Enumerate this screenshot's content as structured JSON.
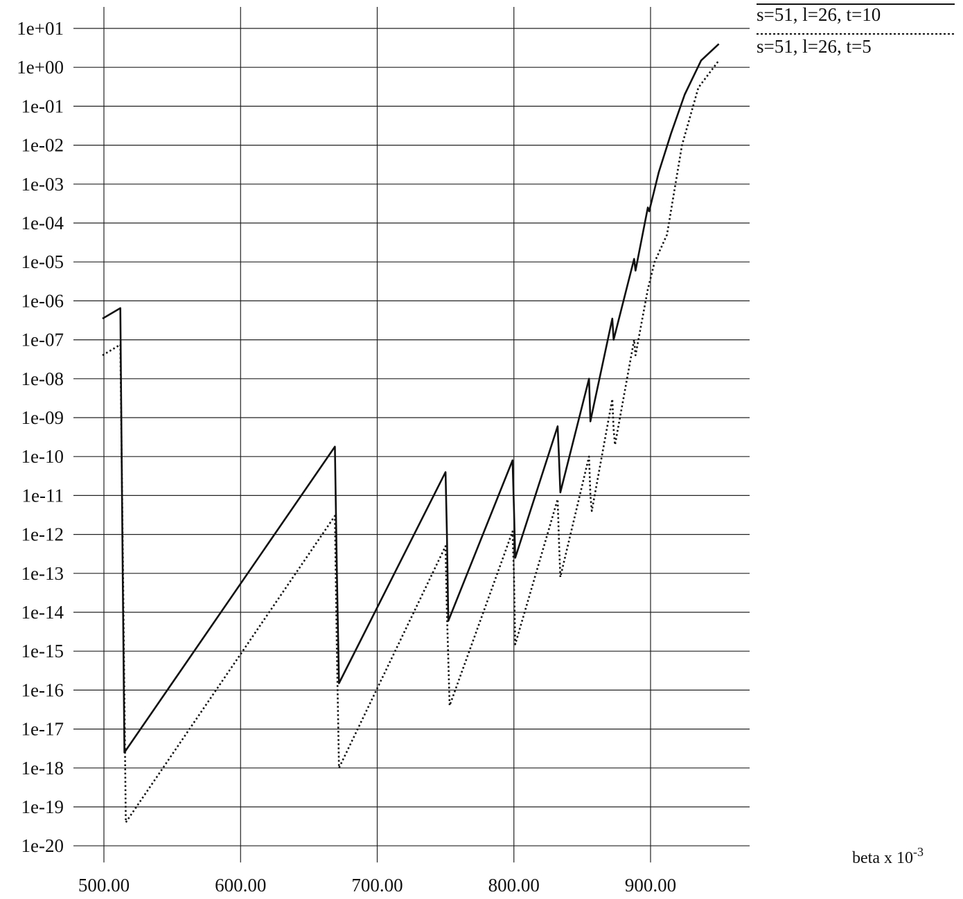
{
  "chart_data": {
    "type": "line",
    "title": "",
    "xlabel": "beta x 10",
    "xlabel_exponent": "-3",
    "ylabel": "",
    "y_scale": "log",
    "xlim": [
      500,
      970
    ],
    "ylim": [
      1e-20,
      10
    ],
    "grid": true,
    "legend_position": "top-right",
    "x_ticks": [
      {
        "value": 500,
        "label": "500.00"
      },
      {
        "value": 600,
        "label": "600.00"
      },
      {
        "value": 700,
        "label": "700.00"
      },
      {
        "value": 800,
        "label": "800.00"
      },
      {
        "value": 900,
        "label": "900.00"
      }
    ],
    "y_ticks": [
      {
        "value": 10.0,
        "label": "1e+01"
      },
      {
        "value": 1.0,
        "label": "1e+00"
      },
      {
        "value": 0.1,
        "label": "1e-01"
      },
      {
        "value": 0.01,
        "label": "1e-02"
      },
      {
        "value": 0.001,
        "label": "1e-03"
      },
      {
        "value": 0.0001,
        "label": "1e-04"
      },
      {
        "value": 1e-05,
        "label": "1e-05"
      },
      {
        "value": 1e-06,
        "label": "1e-06"
      },
      {
        "value": 1e-07,
        "label": "1e-07"
      },
      {
        "value": 1e-08,
        "label": "1e-08"
      },
      {
        "value": 1e-09,
        "label": "1e-09"
      },
      {
        "value": 1e-10,
        "label": "1e-10"
      },
      {
        "value": 1e-11,
        "label": "1e-11"
      },
      {
        "value": 1e-12,
        "label": "1e-12"
      },
      {
        "value": 1e-13,
        "label": "1e-13"
      },
      {
        "value": 1e-14,
        "label": "1e-14"
      },
      {
        "value": 1e-15,
        "label": "1e-15"
      },
      {
        "value": 1e-16,
        "label": "1e-16"
      },
      {
        "value": 1e-17,
        "label": "1e-17"
      },
      {
        "value": 1e-18,
        "label": "1e-18"
      },
      {
        "value": 1e-19,
        "label": "1e-19"
      },
      {
        "value": 1e-20,
        "label": "1e-20"
      }
    ],
    "series": [
      {
        "name": "s=51, l=26, t=10",
        "style": "solid",
        "color": "#111111",
        "points": [
          [
            499,
            3.5e-07
          ],
          [
            512,
            6.5e-07
          ],
          [
            513.5,
            1e-12
          ],
          [
            515,
            2.5e-18
          ],
          [
            669,
            1.8e-10
          ],
          [
            670.5,
            1e-13
          ],
          [
            672,
            1.5e-16
          ],
          [
            750,
            4e-11
          ],
          [
            751,
            1e-12
          ],
          [
            752,
            6e-15
          ],
          [
            799,
            8e-11
          ],
          [
            800,
            5e-12
          ],
          [
            801,
            2.5e-13
          ],
          [
            832,
            6e-10
          ],
          [
            833,
            1e-10
          ],
          [
            834,
            1.2e-11
          ],
          [
            855,
            1e-08
          ],
          [
            856,
            8e-10
          ],
          [
            857,
            1.2e-09
          ],
          [
            872,
            3.5e-07
          ],
          [
            873,
            1e-07
          ],
          [
            888,
            1.2e-05
          ],
          [
            889,
            6e-06
          ],
          [
            898,
            0.00025
          ],
          [
            899,
            0.0002
          ],
          [
            906,
            0.002
          ],
          [
            915,
            0.02
          ],
          [
            925,
            0.2
          ],
          [
            937,
            1.5
          ],
          [
            950,
            4
          ]
        ]
      },
      {
        "name": "s=51, l=26, t=5",
        "style": "dotted",
        "color": "#111111",
        "points": [
          [
            499,
            4e-08
          ],
          [
            512,
            7.5e-08
          ],
          [
            514,
            1e-13
          ],
          [
            516,
            4e-20
          ],
          [
            669,
            3e-12
          ],
          [
            670.5,
            1e-15
          ],
          [
            672,
            1e-18
          ],
          [
            750,
            5e-13
          ],
          [
            751,
            1e-14
          ],
          [
            753,
            4e-17
          ],
          [
            799,
            1.2e-12
          ],
          [
            800,
            1e-13
          ],
          [
            801,
            1.5e-15
          ],
          [
            832,
            8e-12
          ],
          [
            833,
            7e-13
          ],
          [
            834,
            8e-14
          ],
          [
            855,
            1e-10
          ],
          [
            856,
            1e-11
          ],
          [
            857,
            4e-12
          ],
          [
            872,
            3e-09
          ],
          [
            873,
            5e-10
          ],
          [
            874,
            2e-10
          ],
          [
            888,
            1e-07
          ],
          [
            889,
            4e-08
          ],
          [
            898,
            2e-06
          ],
          [
            903,
            1e-05
          ],
          [
            912,
            5e-05
          ],
          [
            923,
            0.01
          ],
          [
            935,
            0.3
          ],
          [
            950,
            1.5
          ]
        ]
      }
    ]
  }
}
